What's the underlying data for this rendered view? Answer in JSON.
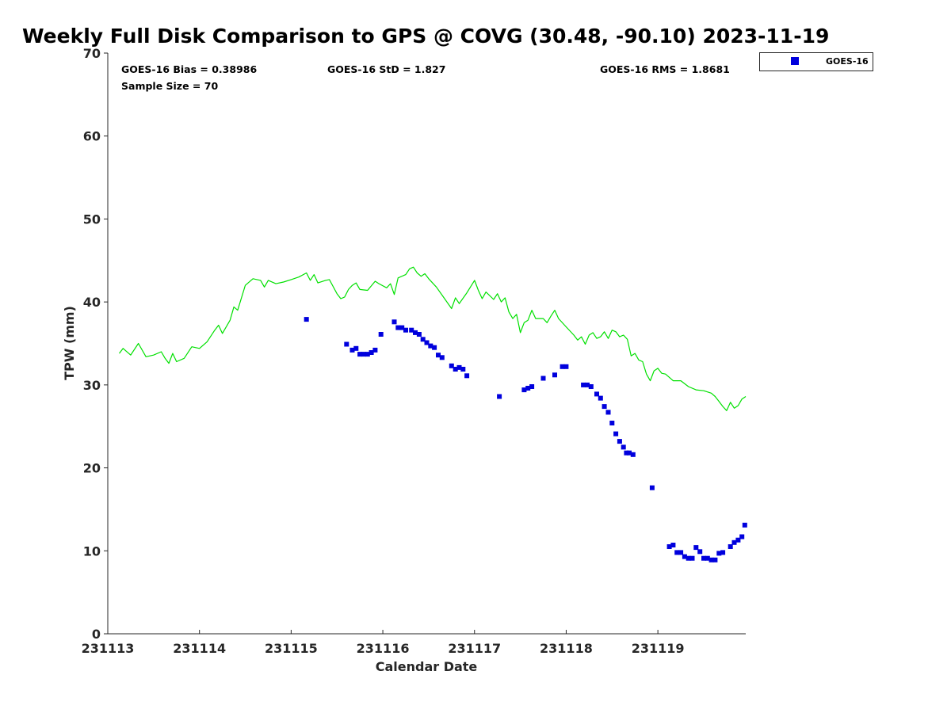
{
  "chart_data": {
    "type": "scatter",
    "title": "Weekly Full Disk Comparison to GPS @ COVG (30.48, -90.10) 2023-11-19",
    "xlabel": "Calendar Date",
    "ylabel": "TPW (mm)",
    "xlim": [
      "2023-11-13T00:00",
      "2023-11-19T23:00"
    ],
    "ylim": [
      0,
      70
    ],
    "yticks": [
      0,
      10,
      20,
      30,
      40,
      50,
      60,
      70
    ],
    "xticks": [
      {
        "date": "2023-11-13",
        "label": "231113"
      },
      {
        "date": "2023-11-14",
        "label": "231114"
      },
      {
        "date": "2023-11-15",
        "label": "231115"
      },
      {
        "date": "2023-11-16",
        "label": "231116"
      },
      {
        "date": "2023-11-17",
        "label": "231117"
      },
      {
        "date": "2023-11-18",
        "label": "231118"
      },
      {
        "date": "2023-11-19",
        "label": "231119"
      }
    ],
    "grid": false,
    "legend_position": "outside-top-right",
    "stats": {
      "bias": "GOES-16 Bias = 0.38986",
      "std": "GOES-16 StD = 1.827",
      "rms": "GOES-16 RMS = 1.8681",
      "sample": "Sample Size = 70"
    },
    "series": [
      {
        "name": "",
        "role": "GPS",
        "style": "line",
        "color": "#00e000",
        "points": [
          [
            "2023-11-13T03:00",
            33.8
          ],
          [
            "2023-11-13T04:00",
            34.4
          ],
          [
            "2023-11-13T06:00",
            33.6
          ],
          [
            "2023-11-13T08:00",
            35.0
          ],
          [
            "2023-11-13T10:00",
            33.4
          ],
          [
            "2023-11-13T12:00",
            33.6
          ],
          [
            "2023-11-13T14:00",
            34.0
          ],
          [
            "2023-11-13T15:00",
            33.2
          ],
          [
            "2023-11-13T16:00",
            32.6
          ],
          [
            "2023-11-13T17:00",
            33.8
          ],
          [
            "2023-11-13T18:00",
            32.8
          ],
          [
            "2023-11-13T20:00",
            33.2
          ],
          [
            "2023-11-13T22:00",
            34.6
          ],
          [
            "2023-11-14T00:00",
            34.4
          ],
          [
            "2023-11-14T02:00",
            35.2
          ],
          [
            "2023-11-14T04:00",
            36.6
          ],
          [
            "2023-11-14T05:00",
            37.2
          ],
          [
            "2023-11-14T06:00",
            36.2
          ],
          [
            "2023-11-14T08:00",
            37.8
          ],
          [
            "2023-11-14T09:00",
            39.4
          ],
          [
            "2023-11-14T10:00",
            39.0
          ],
          [
            "2023-11-14T12:00",
            42.0
          ],
          [
            "2023-11-14T14:00",
            42.8
          ],
          [
            "2023-11-14T16:00",
            42.6
          ],
          [
            "2023-11-14T17:00",
            41.8
          ],
          [
            "2023-11-14T18:00",
            42.6
          ],
          [
            "2023-11-14T20:00",
            42.2
          ],
          [
            "2023-11-14T22:00",
            42.4
          ],
          [
            "2023-11-15T00:00",
            42.7
          ],
          [
            "2023-11-15T02:00",
            43.0
          ],
          [
            "2023-11-15T04:00",
            43.5
          ],
          [
            "2023-11-15T05:00",
            42.6
          ],
          [
            "2023-11-15T06:00",
            43.3
          ],
          [
            "2023-11-15T07:00",
            42.3
          ],
          [
            "2023-11-15T09:00",
            42.6
          ],
          [
            "2023-11-15T10:00",
            42.7
          ],
          [
            "2023-11-15T12:00",
            41.0
          ],
          [
            "2023-11-15T13:00",
            40.4
          ],
          [
            "2023-11-15T14:00",
            40.6
          ],
          [
            "2023-11-15T15:00",
            41.5
          ],
          [
            "2023-11-15T16:00",
            42.0
          ],
          [
            "2023-11-15T17:00",
            42.3
          ],
          [
            "2023-11-15T18:00",
            41.5
          ],
          [
            "2023-11-15T20:00",
            41.4
          ],
          [
            "2023-11-15T22:00",
            42.5
          ],
          [
            "2023-11-15T23:00",
            42.2
          ],
          [
            "2023-11-16T01:00",
            41.7
          ],
          [
            "2023-11-16T02:00",
            42.2
          ],
          [
            "2023-11-16T03:00",
            40.9
          ],
          [
            "2023-11-16T04:00",
            42.9
          ],
          [
            "2023-11-16T06:00",
            43.3
          ],
          [
            "2023-11-16T07:00",
            44.0
          ],
          [
            "2023-11-16T08:00",
            44.2
          ],
          [
            "2023-11-16T09:00",
            43.5
          ],
          [
            "2023-11-16T10:00",
            43.1
          ],
          [
            "2023-11-16T11:00",
            43.4
          ],
          [
            "2023-11-16T12:00",
            42.8
          ],
          [
            "2023-11-16T14:00",
            41.8
          ],
          [
            "2023-11-16T16:00",
            40.5
          ],
          [
            "2023-11-16T18:00",
            39.2
          ],
          [
            "2023-11-16T19:00",
            40.5
          ],
          [
            "2023-11-16T20:00",
            39.8
          ],
          [
            "2023-11-16T22:00",
            41.1
          ],
          [
            "2023-11-17T00:00",
            42.6
          ],
          [
            "2023-11-17T01:00",
            41.4
          ],
          [
            "2023-11-17T02:00",
            40.4
          ],
          [
            "2023-11-17T03:00",
            41.2
          ],
          [
            "2023-11-17T05:00",
            40.3
          ],
          [
            "2023-11-17T06:00",
            41.0
          ],
          [
            "2023-11-17T07:00",
            40.0
          ],
          [
            "2023-11-17T08:00",
            40.5
          ],
          [
            "2023-11-17T09:00",
            38.8
          ],
          [
            "2023-11-17T10:00",
            38.0
          ],
          [
            "2023-11-17T11:00",
            38.5
          ],
          [
            "2023-11-17T12:00",
            36.3
          ],
          [
            "2023-11-17T13:00",
            37.5
          ],
          [
            "2023-11-17T14:00",
            37.8
          ],
          [
            "2023-11-17T15:00",
            39.0
          ],
          [
            "2023-11-17T16:00",
            38.0
          ],
          [
            "2023-11-17T18:00",
            38.0
          ],
          [
            "2023-11-17T19:00",
            37.5
          ],
          [
            "2023-11-17T20:00",
            38.3
          ],
          [
            "2023-11-17T21:00",
            39.0
          ],
          [
            "2023-11-17T22:00",
            38.0
          ],
          [
            "2023-11-18T00:00",
            37.0
          ],
          [
            "2023-11-18T02:00",
            36.0
          ],
          [
            "2023-11-18T03:00",
            35.4
          ],
          [
            "2023-11-18T04:00",
            35.8
          ],
          [
            "2023-11-18T05:00",
            34.9
          ],
          [
            "2023-11-18T06:00",
            36.0
          ],
          [
            "2023-11-18T07:00",
            36.3
          ],
          [
            "2023-11-18T08:00",
            35.6
          ],
          [
            "2023-11-18T09:00",
            35.8
          ],
          [
            "2023-11-18T10:00",
            36.4
          ],
          [
            "2023-11-18T11:00",
            35.6
          ],
          [
            "2023-11-18T12:00",
            36.6
          ],
          [
            "2023-11-18T13:00",
            36.4
          ],
          [
            "2023-11-18T14:00",
            35.8
          ],
          [
            "2023-11-18T15:00",
            36.0
          ],
          [
            "2023-11-18T16:00",
            35.5
          ],
          [
            "2023-11-18T17:00",
            33.5
          ],
          [
            "2023-11-18T18:00",
            33.8
          ],
          [
            "2023-11-18T19:00",
            33.0
          ],
          [
            "2023-11-18T20:00",
            32.8
          ],
          [
            "2023-11-18T21:00",
            31.3
          ],
          [
            "2023-11-18T22:00",
            30.5
          ],
          [
            "2023-11-18T23:00",
            31.7
          ],
          [
            "2023-11-19T00:00",
            32.0
          ],
          [
            "2023-11-19T01:00",
            31.4
          ],
          [
            "2023-11-19T02:00",
            31.3
          ],
          [
            "2023-11-19T04:00",
            30.5
          ],
          [
            "2023-11-19T06:00",
            30.5
          ],
          [
            "2023-11-19T08:00",
            29.8
          ],
          [
            "2023-11-19T10:00",
            29.4
          ],
          [
            "2023-11-19T12:00",
            29.3
          ],
          [
            "2023-11-19T14:00",
            29.0
          ],
          [
            "2023-11-19T15:00",
            28.6
          ],
          [
            "2023-11-19T16:00",
            28.0
          ],
          [
            "2023-11-19T17:00",
            27.4
          ],
          [
            "2023-11-19T18:00",
            26.9
          ],
          [
            "2023-11-19T19:00",
            27.9
          ],
          [
            "2023-11-19T20:00",
            27.2
          ],
          [
            "2023-11-19T21:00",
            27.5
          ],
          [
            "2023-11-19T22:00",
            28.3
          ],
          [
            "2023-11-19T23:00",
            28.6
          ]
        ]
      },
      {
        "name": "GOES-16",
        "role": "satellite",
        "style": "marker",
        "color": "#0000dd",
        "points": [
          [
            "2023-11-15T04:00",
            37.9
          ],
          [
            "2023-11-15T14:30",
            34.9
          ],
          [
            "2023-11-15T16:00",
            34.2
          ],
          [
            "2023-11-15T17:00",
            34.4
          ],
          [
            "2023-11-15T18:00",
            33.7
          ],
          [
            "2023-11-15T19:00",
            33.7
          ],
          [
            "2023-11-15T20:00",
            33.7
          ],
          [
            "2023-11-15T21:00",
            33.9
          ],
          [
            "2023-11-15T22:00",
            34.2
          ],
          [
            "2023-11-15T23:30",
            36.1
          ],
          [
            "2023-11-16T03:00",
            37.6
          ],
          [
            "2023-11-16T04:00",
            36.9
          ],
          [
            "2023-11-16T05:00",
            36.9
          ],
          [
            "2023-11-16T06:00",
            36.6
          ],
          [
            "2023-11-16T07:30",
            36.6
          ],
          [
            "2023-11-16T08:30",
            36.3
          ],
          [
            "2023-11-16T09:30",
            36.1
          ],
          [
            "2023-11-16T10:30",
            35.5
          ],
          [
            "2023-11-16T11:30",
            35.1
          ],
          [
            "2023-11-16T12:30",
            34.7
          ],
          [
            "2023-11-16T13:30",
            34.5
          ],
          [
            "2023-11-16T14:30",
            33.6
          ],
          [
            "2023-11-16T15:30",
            33.3
          ],
          [
            "2023-11-16T18:00",
            32.3
          ],
          [
            "2023-11-16T19:00",
            31.9
          ],
          [
            "2023-11-16T20:00",
            32.1
          ],
          [
            "2023-11-16T21:00",
            31.9
          ],
          [
            "2023-11-16T22:00",
            31.1
          ],
          [
            "2023-11-17T06:30",
            28.6
          ],
          [
            "2023-11-17T13:00",
            29.4
          ],
          [
            "2023-11-17T14:00",
            29.6
          ],
          [
            "2023-11-17T15:00",
            29.8
          ],
          [
            "2023-11-17T18:00",
            30.8
          ],
          [
            "2023-11-17T21:00",
            31.2
          ],
          [
            "2023-11-17T23:00",
            32.2
          ],
          [
            "2023-11-18T00:00",
            32.2
          ],
          [
            "2023-11-18T04:30",
            30.0
          ],
          [
            "2023-11-18T05:30",
            30.0
          ],
          [
            "2023-11-18T06:30",
            29.8
          ],
          [
            "2023-11-18T08:00",
            28.9
          ],
          [
            "2023-11-18T09:00",
            28.4
          ],
          [
            "2023-11-18T10:00",
            27.4
          ],
          [
            "2023-11-18T11:00",
            26.7
          ],
          [
            "2023-11-18T12:00",
            25.4
          ],
          [
            "2023-11-18T13:00",
            24.1
          ],
          [
            "2023-11-18T14:00",
            23.2
          ],
          [
            "2023-11-18T15:00",
            22.5
          ],
          [
            "2023-11-18T15:45",
            21.8
          ],
          [
            "2023-11-18T16:30",
            21.8
          ],
          [
            "2023-11-18T17:30",
            21.6
          ],
          [
            "2023-11-18T22:30",
            17.6
          ],
          [
            "2023-11-19T03:00",
            10.5
          ],
          [
            "2023-11-19T04:00",
            10.7
          ],
          [
            "2023-11-19T05:00",
            9.8
          ],
          [
            "2023-11-19T06:00",
            9.8
          ],
          [
            "2023-11-19T07:00",
            9.3
          ],
          [
            "2023-11-19T08:00",
            9.1
          ],
          [
            "2023-11-19T09:00",
            9.1
          ],
          [
            "2023-11-19T10:00",
            10.4
          ],
          [
            "2023-11-19T11:00",
            9.9
          ],
          [
            "2023-11-19T12:00",
            9.1
          ],
          [
            "2023-11-19T13:00",
            9.1
          ],
          [
            "2023-11-19T14:00",
            8.9
          ],
          [
            "2023-11-19T15:00",
            8.9
          ],
          [
            "2023-11-19T16:00",
            9.7
          ],
          [
            "2023-11-19T17:00",
            9.8
          ],
          [
            "2023-11-19T19:00",
            10.5
          ],
          [
            "2023-11-19T20:00",
            11.0
          ],
          [
            "2023-11-19T21:00",
            11.3
          ],
          [
            "2023-11-19T22:00",
            11.7
          ],
          [
            "2023-11-19T22:45",
            13.1
          ]
        ]
      }
    ]
  }
}
